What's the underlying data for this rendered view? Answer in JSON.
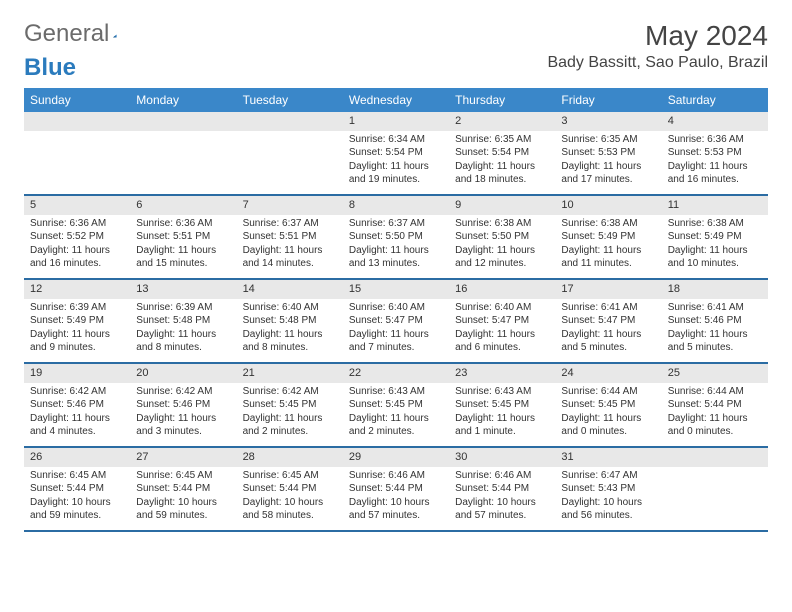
{
  "logo": {
    "text1": "General",
    "text2": "Blue"
  },
  "title": "May 2024",
  "location": "Bady Bassitt, Sao Paulo, Brazil",
  "colors": {
    "header_bg": "#3a87c9",
    "header_text": "#ffffff",
    "daynum_bg": "#e8e8e8",
    "week_border": "#2b6ca3",
    "logo_gray": "#6b6b6b",
    "logo_blue": "#2b7bbd"
  },
  "day_labels": [
    "Sunday",
    "Monday",
    "Tuesday",
    "Wednesday",
    "Thursday",
    "Friday",
    "Saturday"
  ],
  "weeks": [
    [
      {
        "n": "",
        "sr": "",
        "ss": "",
        "dl": ""
      },
      {
        "n": "",
        "sr": "",
        "ss": "",
        "dl": ""
      },
      {
        "n": "",
        "sr": "",
        "ss": "",
        "dl": ""
      },
      {
        "n": "1",
        "sr": "Sunrise: 6:34 AM",
        "ss": "Sunset: 5:54 PM",
        "dl": "Daylight: 11 hours and 19 minutes."
      },
      {
        "n": "2",
        "sr": "Sunrise: 6:35 AM",
        "ss": "Sunset: 5:54 PM",
        "dl": "Daylight: 11 hours and 18 minutes."
      },
      {
        "n": "3",
        "sr": "Sunrise: 6:35 AM",
        "ss": "Sunset: 5:53 PM",
        "dl": "Daylight: 11 hours and 17 minutes."
      },
      {
        "n": "4",
        "sr": "Sunrise: 6:36 AM",
        "ss": "Sunset: 5:53 PM",
        "dl": "Daylight: 11 hours and 16 minutes."
      }
    ],
    [
      {
        "n": "5",
        "sr": "Sunrise: 6:36 AM",
        "ss": "Sunset: 5:52 PM",
        "dl": "Daylight: 11 hours and 16 minutes."
      },
      {
        "n": "6",
        "sr": "Sunrise: 6:36 AM",
        "ss": "Sunset: 5:51 PM",
        "dl": "Daylight: 11 hours and 15 minutes."
      },
      {
        "n": "7",
        "sr": "Sunrise: 6:37 AM",
        "ss": "Sunset: 5:51 PM",
        "dl": "Daylight: 11 hours and 14 minutes."
      },
      {
        "n": "8",
        "sr": "Sunrise: 6:37 AM",
        "ss": "Sunset: 5:50 PM",
        "dl": "Daylight: 11 hours and 13 minutes."
      },
      {
        "n": "9",
        "sr": "Sunrise: 6:38 AM",
        "ss": "Sunset: 5:50 PM",
        "dl": "Daylight: 11 hours and 12 minutes."
      },
      {
        "n": "10",
        "sr": "Sunrise: 6:38 AM",
        "ss": "Sunset: 5:49 PM",
        "dl": "Daylight: 11 hours and 11 minutes."
      },
      {
        "n": "11",
        "sr": "Sunrise: 6:38 AM",
        "ss": "Sunset: 5:49 PM",
        "dl": "Daylight: 11 hours and 10 minutes."
      }
    ],
    [
      {
        "n": "12",
        "sr": "Sunrise: 6:39 AM",
        "ss": "Sunset: 5:49 PM",
        "dl": "Daylight: 11 hours and 9 minutes."
      },
      {
        "n": "13",
        "sr": "Sunrise: 6:39 AM",
        "ss": "Sunset: 5:48 PM",
        "dl": "Daylight: 11 hours and 8 minutes."
      },
      {
        "n": "14",
        "sr": "Sunrise: 6:40 AM",
        "ss": "Sunset: 5:48 PM",
        "dl": "Daylight: 11 hours and 8 minutes."
      },
      {
        "n": "15",
        "sr": "Sunrise: 6:40 AM",
        "ss": "Sunset: 5:47 PM",
        "dl": "Daylight: 11 hours and 7 minutes."
      },
      {
        "n": "16",
        "sr": "Sunrise: 6:40 AM",
        "ss": "Sunset: 5:47 PM",
        "dl": "Daylight: 11 hours and 6 minutes."
      },
      {
        "n": "17",
        "sr": "Sunrise: 6:41 AM",
        "ss": "Sunset: 5:47 PM",
        "dl": "Daylight: 11 hours and 5 minutes."
      },
      {
        "n": "18",
        "sr": "Sunrise: 6:41 AM",
        "ss": "Sunset: 5:46 PM",
        "dl": "Daylight: 11 hours and 5 minutes."
      }
    ],
    [
      {
        "n": "19",
        "sr": "Sunrise: 6:42 AM",
        "ss": "Sunset: 5:46 PM",
        "dl": "Daylight: 11 hours and 4 minutes."
      },
      {
        "n": "20",
        "sr": "Sunrise: 6:42 AM",
        "ss": "Sunset: 5:46 PM",
        "dl": "Daylight: 11 hours and 3 minutes."
      },
      {
        "n": "21",
        "sr": "Sunrise: 6:42 AM",
        "ss": "Sunset: 5:45 PM",
        "dl": "Daylight: 11 hours and 2 minutes."
      },
      {
        "n": "22",
        "sr": "Sunrise: 6:43 AM",
        "ss": "Sunset: 5:45 PM",
        "dl": "Daylight: 11 hours and 2 minutes."
      },
      {
        "n": "23",
        "sr": "Sunrise: 6:43 AM",
        "ss": "Sunset: 5:45 PM",
        "dl": "Daylight: 11 hours and 1 minute."
      },
      {
        "n": "24",
        "sr": "Sunrise: 6:44 AM",
        "ss": "Sunset: 5:45 PM",
        "dl": "Daylight: 11 hours and 0 minutes."
      },
      {
        "n": "25",
        "sr": "Sunrise: 6:44 AM",
        "ss": "Sunset: 5:44 PM",
        "dl": "Daylight: 11 hours and 0 minutes."
      }
    ],
    [
      {
        "n": "26",
        "sr": "Sunrise: 6:45 AM",
        "ss": "Sunset: 5:44 PM",
        "dl": "Daylight: 10 hours and 59 minutes."
      },
      {
        "n": "27",
        "sr": "Sunrise: 6:45 AM",
        "ss": "Sunset: 5:44 PM",
        "dl": "Daylight: 10 hours and 59 minutes."
      },
      {
        "n": "28",
        "sr": "Sunrise: 6:45 AM",
        "ss": "Sunset: 5:44 PM",
        "dl": "Daylight: 10 hours and 58 minutes."
      },
      {
        "n": "29",
        "sr": "Sunrise: 6:46 AM",
        "ss": "Sunset: 5:44 PM",
        "dl": "Daylight: 10 hours and 57 minutes."
      },
      {
        "n": "30",
        "sr": "Sunrise: 6:46 AM",
        "ss": "Sunset: 5:44 PM",
        "dl": "Daylight: 10 hours and 57 minutes."
      },
      {
        "n": "31",
        "sr": "Sunrise: 6:47 AM",
        "ss": "Sunset: 5:43 PM",
        "dl": "Daylight: 10 hours and 56 minutes."
      },
      {
        "n": "",
        "sr": "",
        "ss": "",
        "dl": ""
      }
    ]
  ]
}
